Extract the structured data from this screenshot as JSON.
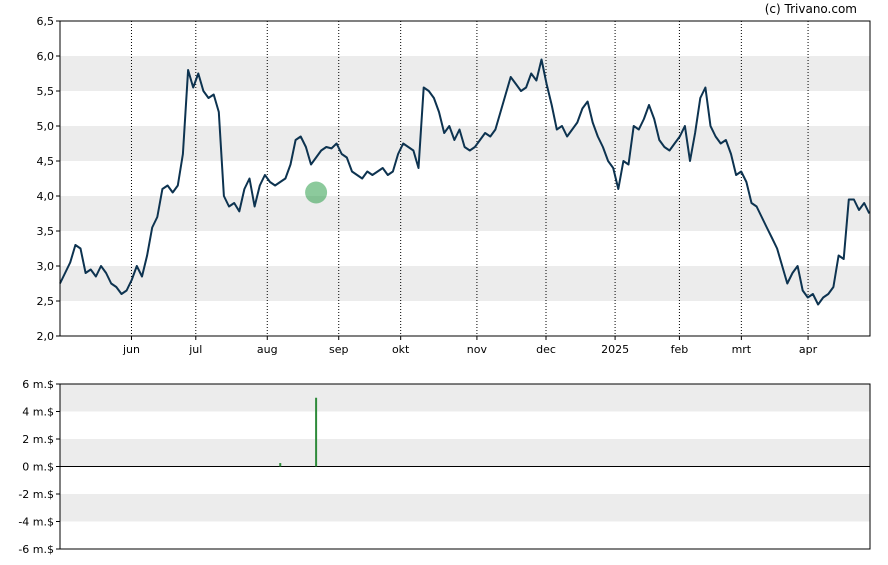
{
  "credit": "(c) Trivano.com",
  "colors": {
    "price_line": "#0d3350",
    "band": "#ececec",
    "marker": "#2e9e4a",
    "volume_bar": "#2e8b3a",
    "grid": "#000000"
  },
  "chart_data": [
    {
      "type": "line",
      "title": "",
      "xlabel": "",
      "ylabel": "",
      "ylim": [
        2.0,
        6.5
      ],
      "yticks": [
        "2,0",
        "2,5",
        "3,0",
        "3,5",
        "4,0",
        "4,5",
        "5,0",
        "5,5",
        "6,0",
        "6,5"
      ],
      "ytick_values": [
        2.0,
        2.5,
        3.0,
        3.5,
        4.0,
        4.5,
        5.0,
        5.5,
        6.0,
        6.5
      ],
      "xticks": [
        "jun",
        "jul",
        "aug",
        "sep",
        "okt",
        "nov",
        "dec",
        "2025",
        "feb",
        "mrt",
        "apr"
      ],
      "x_range": [
        0,
        340
      ],
      "xtick_positions": [
        30,
        57,
        87,
        117,
        143,
        175,
        204,
        233,
        260,
        286,
        314
      ],
      "grid": "vertical dotted at month ticks, alternating horizontal bands",
      "marker": {
        "x": 50,
        "y": 4.05
      },
      "series": [
        {
          "points": [
            [
              0,
              2.75
            ],
            [
              2,
              3.05
            ],
            [
              3,
              3.3
            ],
            [
              4,
              3.25
            ],
            [
              5,
              2.9
            ],
            [
              6,
              2.95
            ],
            [
              7,
              2.85
            ],
            [
              8,
              3.0
            ],
            [
              9,
              2.9
            ],
            [
              10,
              2.75
            ],
            [
              11,
              2.7
            ],
            [
              12,
              2.6
            ],
            [
              13,
              2.65
            ],
            [
              14,
              2.8
            ],
            [
              15,
              3.0
            ],
            [
              16,
              2.85
            ],
            [
              17,
              3.15
            ],
            [
              18,
              3.55
            ],
            [
              19,
              3.7
            ],
            [
              20,
              4.1
            ],
            [
              21,
              4.15
            ],
            [
              22,
              4.05
            ],
            [
              23,
              4.15
            ],
            [
              24,
              4.6
            ],
            [
              25,
              5.8
            ],
            [
              26,
              5.55
            ],
            [
              27,
              5.75
            ],
            [
              28,
              5.5
            ],
            [
              29,
              5.4
            ],
            [
              30,
              5.45
            ],
            [
              31,
              5.2
            ],
            [
              32,
              4.0
            ],
            [
              33,
              3.85
            ],
            [
              34,
              3.9
            ],
            [
              35,
              3.78
            ],
            [
              36,
              4.1
            ],
            [
              37,
              4.25
            ],
            [
              38,
              3.85
            ],
            [
              39,
              4.15
            ],
            [
              40,
              4.3
            ],
            [
              41,
              4.2
            ],
            [
              42,
              4.15
            ],
            [
              43,
              4.2
            ],
            [
              44,
              4.25
            ],
            [
              45,
              4.45
            ],
            [
              46,
              4.8
            ],
            [
              47,
              4.85
            ],
            [
              48,
              4.7
            ],
            [
              49,
              4.45
            ],
            [
              50,
              4.55
            ],
            [
              51,
              4.65
            ],
            [
              52,
              4.7
            ],
            [
              53,
              4.68
            ],
            [
              54,
              4.75
            ],
            [
              55,
              4.6
            ],
            [
              56,
              4.55
            ],
            [
              57,
              4.35
            ],
            [
              58,
              4.3
            ],
            [
              59,
              4.25
            ],
            [
              60,
              4.35
            ],
            [
              61,
              4.3
            ],
            [
              62,
              4.35
            ],
            [
              63,
              4.4
            ],
            [
              64,
              4.3
            ],
            [
              65,
              4.35
            ],
            [
              66,
              4.6
            ],
            [
              67,
              4.75
            ],
            [
              68,
              4.7
            ],
            [
              69,
              4.65
            ],
            [
              70,
              4.4
            ],
            [
              71,
              5.55
            ],
            [
              72,
              5.5
            ],
            [
              73,
              5.4
            ],
            [
              74,
              5.2
            ],
            [
              75,
              4.9
            ],
            [
              76,
              5.0
            ],
            [
              77,
              4.8
            ],
            [
              78,
              4.95
            ],
            [
              79,
              4.7
            ],
            [
              80,
              4.65
            ],
            [
              81,
              4.7
            ],
            [
              82,
              4.8
            ],
            [
              83,
              4.9
            ],
            [
              84,
              4.85
            ],
            [
              85,
              4.95
            ],
            [
              86,
              5.2
            ],
            [
              87,
              5.45
            ],
            [
              88,
              5.7
            ],
            [
              89,
              5.6
            ],
            [
              90,
              5.5
            ],
            [
              91,
              5.55
            ],
            [
              92,
              5.75
            ],
            [
              93,
              5.65
            ],
            [
              94,
              5.95
            ],
            [
              95,
              5.6
            ],
            [
              96,
              5.3
            ],
            [
              97,
              4.95
            ],
            [
              98,
              5.0
            ],
            [
              99,
              4.85
            ],
            [
              100,
              4.95
            ],
            [
              101,
              5.05
            ],
            [
              102,
              5.25
            ],
            [
              103,
              5.35
            ],
            [
              104,
              5.05
            ],
            [
              105,
              4.85
            ],
            [
              106,
              4.7
            ],
            [
              107,
              4.5
            ],
            [
              108,
              4.4
            ],
            [
              109,
              4.1
            ],
            [
              110,
              4.5
            ],
            [
              111,
              4.45
            ],
            [
              112,
              5.0
            ],
            [
              113,
              4.95
            ],
            [
              114,
              5.1
            ],
            [
              115,
              5.3
            ],
            [
              116,
              5.1
            ],
            [
              117,
              4.8
            ],
            [
              118,
              4.7
            ],
            [
              119,
              4.65
            ],
            [
              120,
              4.75
            ],
            [
              121,
              4.85
            ],
            [
              122,
              5.0
            ],
            [
              123,
              4.5
            ],
            [
              124,
              4.9
            ],
            [
              125,
              5.4
            ],
            [
              126,
              5.55
            ],
            [
              127,
              5.0
            ],
            [
              128,
              4.85
            ],
            [
              129,
              4.75
            ],
            [
              130,
              4.8
            ],
            [
              131,
              4.6
            ],
            [
              132,
              4.3
            ],
            [
              133,
              4.35
            ],
            [
              134,
              4.2
            ],
            [
              135,
              3.9
            ],
            [
              136,
              3.85
            ],
            [
              137,
              3.7
            ],
            [
              138,
              3.55
            ],
            [
              139,
              3.4
            ],
            [
              140,
              3.25
            ],
            [
              141,
              3.0
            ],
            [
              142,
              2.75
            ],
            [
              143,
              2.9
            ],
            [
              144,
              3.0
            ],
            [
              145,
              2.65
            ],
            [
              146,
              2.55
            ],
            [
              147,
              2.6
            ],
            [
              148,
              2.45
            ],
            [
              149,
              2.55
            ],
            [
              150,
              2.6
            ],
            [
              151,
              2.7
            ],
            [
              152,
              3.15
            ],
            [
              153,
              3.1
            ],
            [
              154,
              3.95
            ],
            [
              155,
              3.95
            ],
            [
              156,
              3.8
            ],
            [
              157,
              3.9
            ],
            [
              158,
              3.75
            ]
          ]
        }
      ]
    },
    {
      "type": "bar",
      "title": "",
      "xlabel": "",
      "ylabel": "",
      "ylim": [
        -6,
        6
      ],
      "yticks": [
        "6 m.$",
        "4 m.$",
        "2 m.$",
        "0 m.$",
        "-2 m.$",
        "-4 m.$",
        "-6 m.$"
      ],
      "ytick_values": [
        6,
        4,
        2,
        0,
        -2,
        -4,
        -6
      ],
      "grid": "alternating horizontal bands",
      "series": [
        {
          "points": [
            [
              43,
              0.25
            ],
            [
              50,
              5.0
            ],
            [
              207,
              0.06
            ],
            [
              212,
              0.06
            ],
            [
              215,
              0.06
            ],
            [
              305,
              0.06
            ]
          ]
        }
      ]
    }
  ]
}
